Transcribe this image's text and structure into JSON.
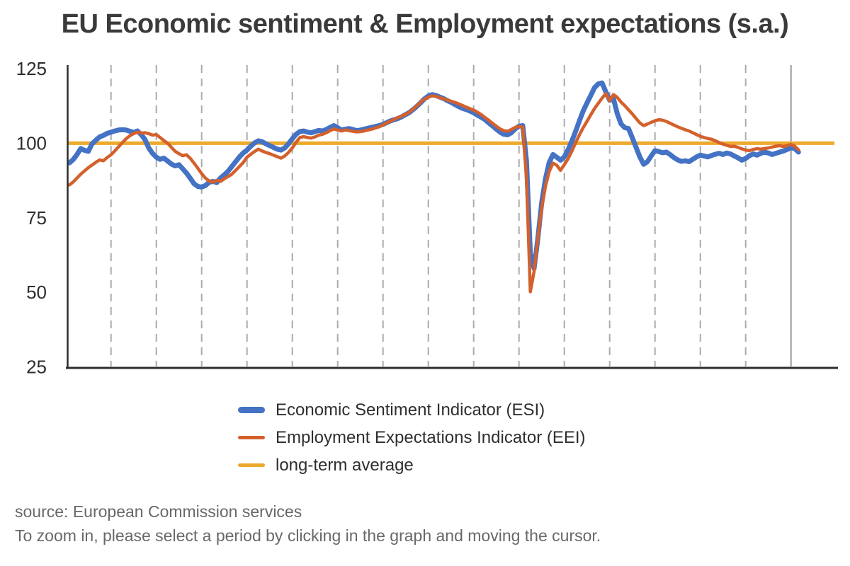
{
  "title": "EU Economic sentiment & Employment expectations (s.a.)",
  "footer": {
    "source": "source: European Commission services",
    "hint": "To zoom in, please select a period by clicking in the graph and moving the cursor."
  },
  "colors": {
    "esi_blue": "#4472c4",
    "eei_orange": "#d4602c",
    "average_yellow": "#eda92d",
    "axis": "#2d2d2d",
    "gridline": "#ababab",
    "solid_gridline": "#9a9a9a",
    "title_text": "#3a3a3a",
    "footer_text": "#686868"
  },
  "chart_data": {
    "type": "line",
    "title": "EU Economic sentiment & Employment expectations (s.a.)",
    "xlabel": "",
    "ylabel": "",
    "y_ticks": [
      25,
      50,
      75,
      100,
      125
    ],
    "ylim": [
      25,
      126
    ],
    "grid": "vertical-dashed-yearly",
    "x_axis": {
      "tick_labels_visible": false,
      "frequency": "monthly",
      "year_gridlines": 16,
      "last_gridline_solid": true
    },
    "long_term_average": 100,
    "legend_position": "bottom-left",
    "legend": [
      {
        "label": "Economic Sentiment Indicator (ESI)",
        "color": "#4472c4"
      },
      {
        "label": "Employment Expectations Indicator (EEI)",
        "color": "#d4602c"
      },
      {
        "label": "long-term average",
        "color": "#eda92d"
      }
    ],
    "series": [
      {
        "name": "Economic Sentiment Indicator (ESI)",
        "color": "#4472c4",
        "width": 7,
        "values": [
          93.4,
          94.5,
          96.2,
          98.2,
          97.6,
          97.3,
          99.8,
          101.0,
          102.1,
          102.6,
          103.3,
          103.7,
          104.1,
          104.4,
          104.5,
          104.4,
          104.0,
          103.6,
          104.1,
          102.9,
          101.2,
          98.4,
          96.6,
          95.3,
          94.6,
          95.0,
          94.0,
          93.0,
          92.4,
          92.8,
          91.4,
          90.0,
          88.2,
          86.4,
          85.5,
          85.3,
          85.8,
          86.9,
          87.2,
          86.8,
          88.3,
          89.4,
          90.6,
          92.2,
          93.8,
          95.4,
          96.7,
          97.7,
          99.0,
          100.1,
          100.8,
          100.5,
          99.8,
          99.2,
          98.6,
          98.0,
          97.7,
          98.4,
          99.8,
          101.5,
          103.0,
          103.9,
          104.1,
          103.7,
          103.5,
          103.9,
          104.3,
          104.1,
          104.6,
          105.3,
          105.9,
          105.2,
          104.4,
          104.7,
          104.9,
          104.6,
          104.2,
          104.4,
          104.7,
          105.0,
          105.3,
          105.6,
          105.9,
          106.3,
          106.9,
          107.5,
          107.9,
          108.3,
          108.9,
          109.6,
          110.3,
          111.3,
          112.4,
          113.6,
          114.9,
          115.8,
          116.3,
          116.0,
          115.5,
          115.0,
          114.3,
          113.7,
          113.0,
          112.3,
          111.7,
          111.3,
          110.8,
          110.2,
          109.4,
          108.7,
          107.9,
          106.8,
          105.8,
          104.7,
          103.7,
          103.0,
          102.8,
          103.5,
          104.8,
          105.7,
          105.9,
          94.0,
          63.0,
          58.0,
          68.0,
          80.0,
          88.0,
          93.5,
          96.2,
          95.3,
          94.3,
          95.4,
          97.8,
          100.7,
          104.0,
          107.5,
          110.8,
          113.5,
          116.0,
          118.6,
          119.9,
          120.2,
          117.2,
          114.4,
          115.0,
          110.0,
          106.5,
          105.2,
          104.9,
          101.8,
          98.6,
          95.4,
          92.9,
          93.8,
          95.7,
          97.5,
          97.2,
          96.8,
          97.0,
          96.2,
          95.2,
          94.4,
          93.9,
          94.1,
          93.8,
          94.6,
          95.4,
          96.0,
          95.7,
          95.4,
          95.9,
          96.3,
          96.6,
          96.2,
          96.7,
          96.4,
          95.7,
          95.1,
          94.3,
          94.9,
          95.8,
          96.4,
          96.0,
          96.6,
          97.0,
          96.7,
          96.2,
          96.6,
          97.0,
          97.4,
          97.9,
          98.5,
          98.2,
          97.0
        ]
      },
      {
        "name": "Employment Expectations Indicator (EEI)",
        "color": "#d4602c",
        "width": 4.5,
        "values": [
          86.0,
          87.0,
          88.3,
          89.6,
          90.7,
          91.8,
          92.7,
          93.6,
          94.4,
          94.1,
          95.2,
          96.1,
          97.4,
          98.8,
          100.2,
          101.5,
          102.5,
          103.2,
          103.7,
          103.4,
          103.5,
          103.2,
          102.7,
          102.9,
          101.9,
          100.9,
          100.0,
          98.6,
          97.3,
          96.5,
          95.8,
          96.1,
          94.9,
          93.3,
          91.6,
          89.8,
          88.3,
          87.3,
          86.9,
          87.6,
          87.2,
          88.1,
          88.8,
          89.6,
          90.9,
          92.2,
          93.5,
          95.3,
          96.3,
          97.2,
          98.0,
          97.4,
          96.9,
          96.5,
          96.0,
          95.5,
          95.0,
          95.7,
          96.9,
          98.4,
          100.3,
          101.9,
          102.2,
          101.9,
          101.7,
          102.1,
          102.7,
          103.0,
          103.5,
          104.2,
          104.8,
          104.4,
          104.1,
          104.4,
          104.2,
          104.0,
          103.8,
          103.9,
          104.1,
          104.4,
          104.7,
          105.1,
          105.5,
          106.1,
          106.8,
          107.4,
          108.0,
          108.6,
          109.1,
          109.7,
          110.4,
          111.5,
          112.6,
          113.8,
          114.8,
          115.4,
          115.9,
          115.7,
          115.3,
          114.9,
          114.5,
          114.1,
          113.7,
          113.2,
          112.7,
          112.1,
          111.6,
          111.1,
          110.4,
          109.6,
          108.6,
          107.7,
          106.7,
          105.7,
          104.8,
          104.2,
          104.0,
          104.6,
          105.3,
          105.6,
          105.4,
          88.0,
          50.2,
          57.0,
          68.0,
          78.0,
          85.5,
          90.5,
          93.3,
          92.6,
          90.9,
          92.8,
          94.8,
          97.3,
          100.2,
          102.8,
          105.2,
          107.3,
          109.5,
          111.6,
          113.4,
          115.1,
          116.6,
          114.2,
          116.3,
          115.4,
          113.8,
          112.6,
          111.2,
          109.8,
          108.3,
          106.8,
          105.9,
          106.4,
          107.0,
          107.5,
          107.9,
          107.7,
          107.3,
          106.7,
          106.1,
          105.5,
          105.0,
          104.5,
          104.1,
          103.5,
          102.9,
          102.3,
          101.9,
          101.6,
          101.3,
          100.8,
          100.2,
          99.7,
          99.3,
          98.9,
          99.0,
          98.6,
          98.1,
          97.7,
          97.5,
          97.9,
          98.2,
          98.0,
          98.2,
          98.4,
          98.7,
          99.0,
          99.2,
          98.9,
          99.2,
          99.6,
          99.0,
          97.8
        ]
      }
    ]
  }
}
